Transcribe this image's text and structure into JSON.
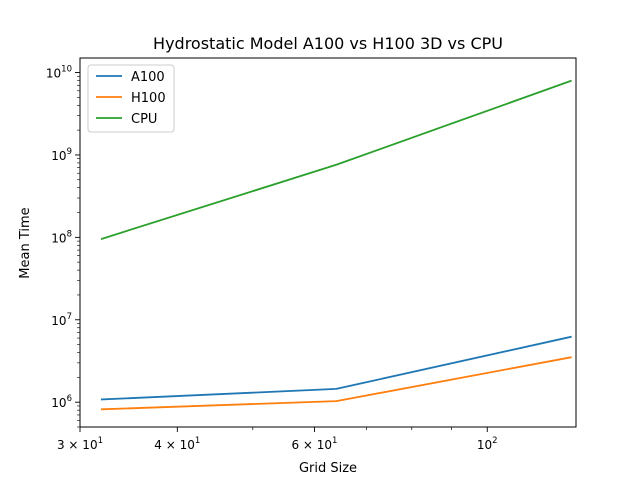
{
  "chart_data": {
    "type": "line",
    "title": "Hydrostatic Model A100 vs H100 3D vs CPU",
    "xlabel": "Grid Size",
    "ylabel": "Mean Time",
    "xscale": "log",
    "yscale": "log",
    "xlim": [
      30,
      130
    ],
    "ylim": [
      500000,
      15000000000
    ],
    "grid": false,
    "legend_position": "top-left",
    "x": [
      32,
      64,
      128
    ],
    "series": [
      {
        "name": "A100",
        "color": "#1f77b4",
        "values": [
          1080000,
          1450000,
          6200000
        ]
      },
      {
        "name": "H100",
        "color": "#ff7f0e",
        "values": [
          820000,
          1030000,
          3500000
        ]
      },
      {
        "name": "CPU",
        "color": "#2ca02c",
        "values": [
          96000000,
          760000000,
          7900000000
        ]
      }
    ],
    "x_major_ticks": [
      {
        "value": 30,
        "base": "3 × 10",
        "exp": "1"
      },
      {
        "value": 40,
        "base": "4 × 10",
        "exp": "1"
      },
      {
        "value": 60,
        "base": "6 × 10",
        "exp": "1"
      },
      {
        "value": 100,
        "base": "10",
        "exp": "2"
      }
    ],
    "x_minor_ticks": [
      50,
      70,
      80,
      90
    ],
    "y_major_ticks": [
      {
        "value": 1000000,
        "base": "10",
        "exp": "6"
      },
      {
        "value": 10000000,
        "base": "10",
        "exp": "7"
      },
      {
        "value": 100000000,
        "base": "10",
        "exp": "8"
      },
      {
        "value": 1000000000,
        "base": "10",
        "exp": "9"
      },
      {
        "value": 10000000000,
        "base": "10",
        "exp": "10"
      }
    ]
  }
}
